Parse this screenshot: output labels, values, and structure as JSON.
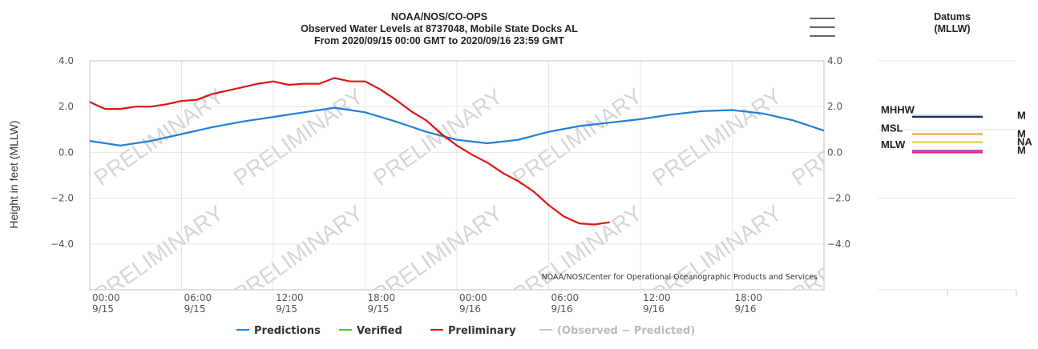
{
  "chart_data": {
    "type": "line",
    "title": "NOAA/NOS/CO-OPS",
    "subtitle_1": "Observed Water Levels at 8737048, Mobile State Docks AL",
    "subtitle_2": "From 2020/09/15 00:00 GMT to 2020/09/16 23:59 GMT",
    "ylabel": "Height in feet (MLLW)",
    "credit": "NOAA/NOS/Center for Operational Oceanographic Products and Services",
    "watermark": "PRELIMINARY",
    "xlim": [
      0,
      48
    ],
    "ylim": [
      -6.0,
      4.0
    ],
    "y_ticks": [
      4.0,
      2.0,
      0.0,
      -2.0,
      -4.0
    ],
    "y_tick_labels": [
      "4.0",
      "2.0",
      "0.0",
      "−2.0",
      "−4.0"
    ],
    "y_right_tick_labels": [
      "4.0",
      "2.0",
      "0.0",
      "−2.0",
      "−4.0"
    ],
    "x_ticks": [
      0,
      6,
      12,
      18,
      24,
      30,
      36,
      42
    ],
    "x_tick_labels": [
      {
        "time": "00:00",
        "date": "9/15"
      },
      {
        "time": "06:00",
        "date": "9/15"
      },
      {
        "time": "12:00",
        "date": "9/15"
      },
      {
        "time": "18:00",
        "date": "9/15"
      },
      {
        "time": "00:00",
        "date": "9/16"
      },
      {
        "time": "06:00",
        "date": "9/16"
      },
      {
        "time": "12:00",
        "date": "9/16"
      },
      {
        "time": "18:00",
        "date": "9/16"
      }
    ],
    "series": [
      {
        "name": "Predictions",
        "color": "#1f7fd8",
        "x": [
          0,
          2,
          4,
          6,
          8,
          10,
          12,
          14,
          16,
          18,
          20,
          22,
          24,
          26,
          28,
          30,
          32,
          34,
          36,
          38,
          40,
          42,
          44,
          46,
          48
        ],
        "y": [
          0.5,
          0.3,
          0.5,
          0.8,
          1.1,
          1.35,
          1.55,
          1.75,
          1.95,
          1.75,
          1.35,
          0.9,
          0.55,
          0.4,
          0.55,
          0.9,
          1.15,
          1.3,
          1.45,
          1.65,
          1.8,
          1.85,
          1.7,
          1.4,
          0.95
        ]
      },
      {
        "name": "Verified",
        "color": "#33cc33",
        "x": [],
        "y": []
      },
      {
        "name": "Preliminary",
        "color": "#e01414",
        "x": [
          0,
          1,
          2,
          3,
          4,
          5,
          6,
          7,
          8,
          9,
          10,
          11,
          12,
          13,
          14,
          15,
          16,
          17,
          18,
          19,
          20,
          21,
          22,
          23,
          24,
          25,
          26,
          27,
          28,
          29,
          30,
          31,
          32,
          33,
          34
        ],
        "y": [
          2.2,
          1.9,
          1.9,
          2.0,
          2.0,
          2.1,
          2.25,
          2.3,
          2.55,
          2.7,
          2.85,
          3.0,
          3.1,
          2.95,
          3.0,
          3.0,
          3.25,
          3.1,
          3.1,
          2.75,
          2.3,
          1.8,
          1.4,
          0.8,
          0.3,
          -0.1,
          -0.45,
          -0.9,
          -1.25,
          -1.7,
          -2.3,
          -2.8,
          -3.1,
          -3.15,
          -3.05
        ]
      },
      {
        "name": "(Observed − Predicted)",
        "color": "#c8c8c8",
        "x": [],
        "y": []
      }
    ],
    "legend": {
      "position": "bottom",
      "items": [
        {
          "label": "Predictions",
          "color": "#1f7fd8",
          "text_color": "#333333"
        },
        {
          "label": "Verified",
          "color": "#33cc33",
          "text_color": "#333333"
        },
        {
          "label": "Preliminary",
          "color": "#e01414",
          "text_color": "#333333"
        },
        {
          "label": "(Observed − Predicted)",
          "color": "#c8c8c8",
          "text_color": "#bbbbbb"
        }
      ]
    },
    "grid": true,
    "datums": {
      "title_1": "Datums",
      "title_2": "(MLLW)",
      "lines": [
        {
          "left_label": "MHHW",
          "right_label": "M",
          "value": 1.6,
          "color": "#9bc4e8"
        },
        {
          "left_label": "",
          "right_label": "",
          "value": 1.55,
          "color": "#2a2a50"
        },
        {
          "left_label": "MSL",
          "right_label": "M",
          "value": 0.8,
          "color": "#f0a050"
        },
        {
          "left_label": "",
          "right_label": "NA",
          "value": 0.45,
          "color": "#e8d040"
        },
        {
          "left_label": "MLW",
          "right_label": "M",
          "value": 0.08,
          "color": "#9b59d0"
        },
        {
          "left_label": "",
          "right_label": "",
          "value": 0.0,
          "color": "#ee2277"
        }
      ]
    }
  }
}
